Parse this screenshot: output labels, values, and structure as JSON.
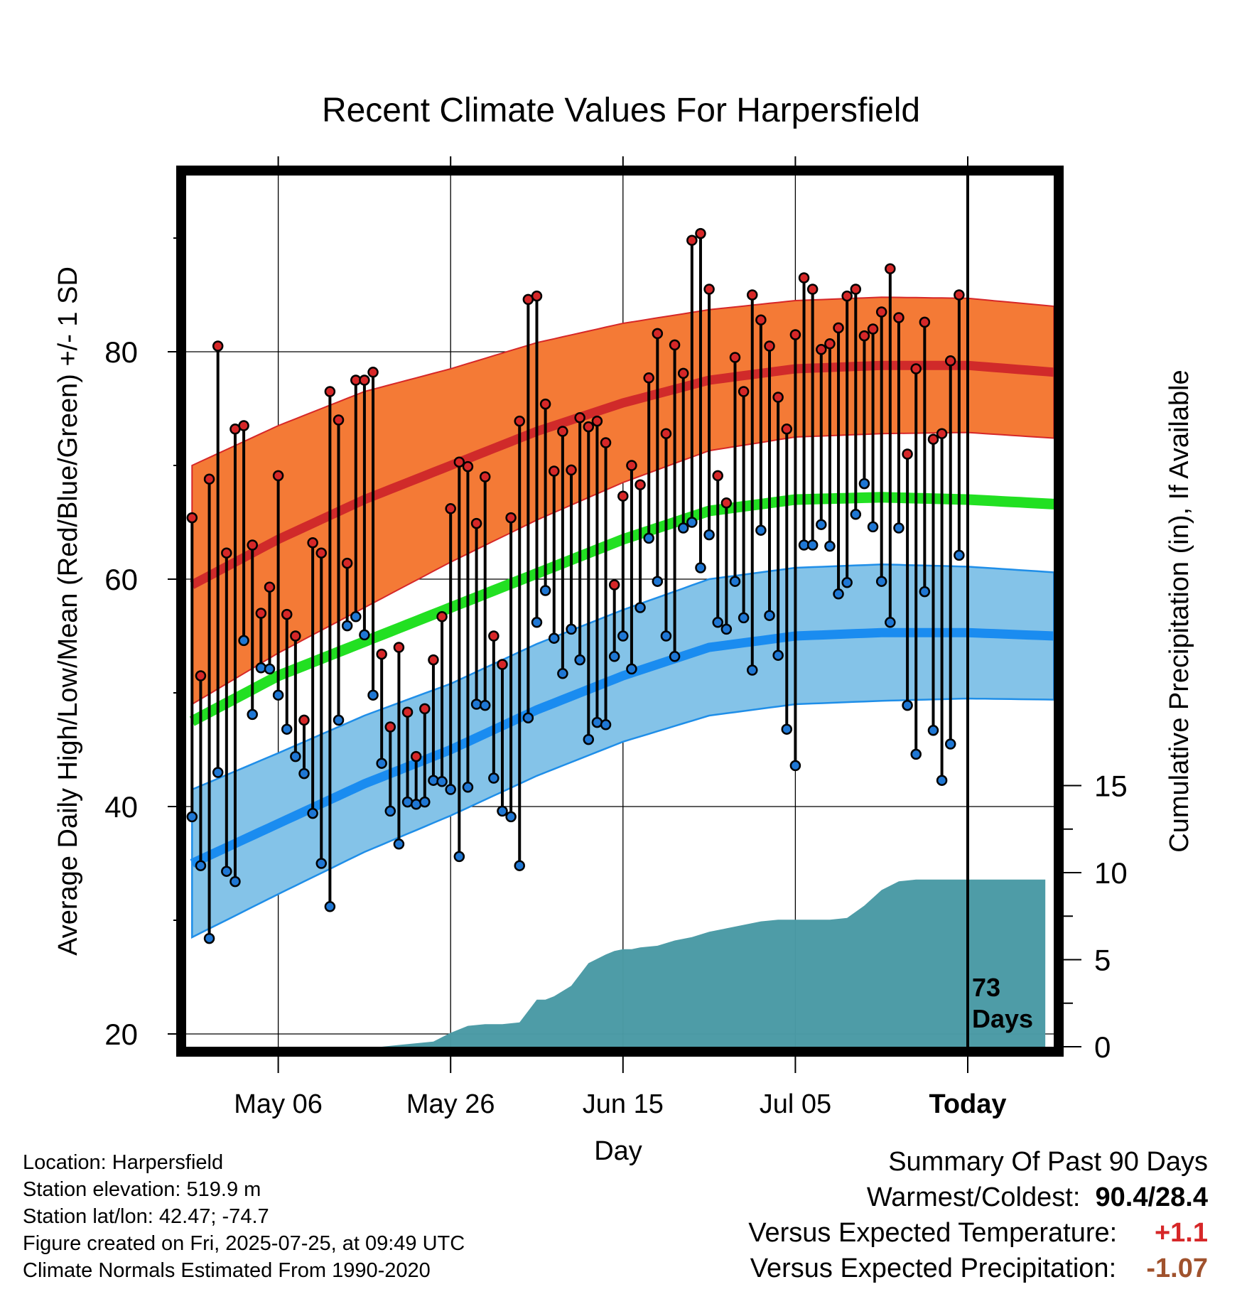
{
  "chart_data": {
    "type": "line",
    "title": "Recent Climate Values For Harpersfield",
    "xlabel": "Day",
    "ylabel": "Average Daily High/Low/Mean (Red/Blue/Green) +/- 1 SD",
    "y2label": "Cumulative Precipitation (in), If Available",
    "x_tick_labels": [
      "May 06",
      "May 26",
      "Jun 15",
      "Jul 05",
      "Today"
    ],
    "x_range_days": [
      -100,
      0
    ],
    "ylim": [
      18,
      98
    ],
    "y_ticks": [
      20,
      40,
      60,
      80
    ],
    "y2lim": [
      0,
      15
    ],
    "y2_ticks": [
      0,
      5,
      10,
      15
    ],
    "grid": true,
    "days_label": "73\nDays",
    "normals": {
      "x_days": [
        -90,
        -80,
        -70,
        -60,
        -50,
        -40,
        -30,
        -20,
        -10,
        0,
        10
      ],
      "high_mean": [
        59.5,
        63.5,
        67.0,
        70.0,
        73.0,
        75.5,
        77.5,
        78.5,
        78.8,
        78.8,
        78.2
      ],
      "high_sd": [
        10.5,
        10.0,
        9.5,
        8.5,
        7.8,
        7.0,
        6.2,
        6.0,
        6.0,
        5.9,
        5.8
      ],
      "low_mean": [
        35.0,
        38.5,
        42.0,
        45.0,
        48.5,
        51.5,
        54.0,
        55.0,
        55.3,
        55.3,
        55.0
      ],
      "low_sd": [
        6.5,
        6.2,
        6.0,
        5.8,
        5.8,
        5.8,
        6.0,
        6.0,
        6.0,
        5.8,
        5.6
      ],
      "mean": [
        47.5,
        51.5,
        54.5,
        57.5,
        60.5,
        63.5,
        66.0,
        67.0,
        67.2,
        67.0,
        66.6
      ]
    },
    "series": [
      {
        "name": "High",
        "color": "#d62728",
        "values": [
          65.4,
          51.5,
          68.8,
          80.5,
          62.3,
          73.2,
          73.5,
          63.0,
          57.0,
          59.3,
          69.1,
          56.9,
          55.0,
          47.6,
          63.2,
          62.3,
          76.5,
          74.0,
          61.4,
          77.5,
          77.5,
          78.2,
          53.4,
          47.0,
          54.0,
          48.3,
          44.4,
          48.6,
          52.9,
          56.7,
          66.2,
          70.3,
          69.9,
          64.9,
          69.0,
          55.0,
          52.5,
          65.4,
          73.9,
          84.6,
          84.9,
          75.4,
          69.5,
          73.0,
          69.6,
          74.2,
          73.4,
          73.9,
          72.0,
          59.5,
          67.3,
          70.0,
          68.3,
          77.7,
          81.6,
          72.8,
          80.6,
          78.1,
          89.8,
          90.4,
          85.5,
          69.1,
          66.7,
          79.5,
          76.5,
          85.0,
          82.8,
          80.5,
          76.0,
          73.2,
          81.5,
          86.5,
          85.5,
          80.2,
          80.7,
          82.1,
          84.9,
          85.5,
          81.4,
          82.0,
          83.5,
          87.3,
          83.0,
          71.0,
          78.5,
          82.6,
          72.3,
          72.8,
          79.2,
          85.0
        ]
      },
      {
        "name": "Low",
        "color": "#1f77d4",
        "values": [
          39.1,
          34.8,
          28.4,
          43.0,
          34.3,
          33.4,
          54.6,
          48.1,
          52.2,
          52.1,
          49.8,
          46.8,
          44.4,
          42.9,
          39.4,
          35.0,
          31.2,
          47.6,
          55.9,
          56.7,
          55.1,
          49.8,
          43.8,
          39.6,
          36.7,
          40.4,
          40.2,
          40.4,
          42.3,
          42.2,
          41.5,
          35.6,
          41.7,
          49.0,
          48.9,
          42.5,
          39.6,
          39.1,
          34.8,
          47.8,
          56.2,
          59.0,
          54.8,
          51.7,
          55.6,
          52.9,
          45.9,
          47.4,
          47.2,
          53.2,
          55.0,
          52.1,
          57.5,
          63.6,
          59.8,
          55.0,
          53.2,
          64.5,
          65.0,
          61.0,
          63.9,
          56.2,
          55.6,
          59.8,
          56.6,
          52.0,
          64.3,
          56.8,
          53.3,
          46.8,
          43.6,
          63.0,
          63.0,
          64.8,
          62.9,
          58.7,
          59.7,
          65.7,
          68.4,
          64.6,
          59.8,
          56.2,
          64.5,
          48.9,
          44.6,
          58.9,
          46.7,
          42.3,
          45.5,
          62.1
        ]
      },
      {
        "name": "Precipitation",
        "color": "#4a9aa5",
        "x_days": [
          -90,
          -68,
          -66,
          -64,
          -62,
          -60,
          -58,
          -56,
          -54,
          -52,
          -50,
          -49,
          -48,
          -46,
          -44,
          -42,
          -41,
          -40,
          -39,
          -38,
          -36,
          -34,
          -32,
          -30,
          -28,
          -26,
          -24,
          -22,
          -20,
          -18,
          -16,
          -14,
          -12,
          -10,
          -8,
          -6,
          -4,
          -2,
          0,
          9
        ],
        "values": [
          0.0,
          0.0,
          0.1,
          0.2,
          0.3,
          0.8,
          1.2,
          1.3,
          1.3,
          1.4,
          2.7,
          2.7,
          2.9,
          3.5,
          4.8,
          5.3,
          5.5,
          5.6,
          5.6,
          5.7,
          5.8,
          6.1,
          6.3,
          6.6,
          6.8,
          7.0,
          7.2,
          7.3,
          7.3,
          7.3,
          7.3,
          7.4,
          8.1,
          9.0,
          9.5,
          9.6,
          9.6,
          9.6,
          9.6,
          9.6
        ]
      }
    ]
  },
  "footer": {
    "location": "Location: Harpersfield",
    "elevation": "Station elevation: 519.9 m",
    "latlon": "Station lat/lon: 42.47; -74.7",
    "created": "Figure created on Fri, 2025-07-25, at 09:49 UTC",
    "normals": "Climate Normals Estimated From 1990-2020"
  },
  "summary": {
    "heading": "Summary Of Past 90 Days",
    "warmest_label": "Warmest/Coldest:",
    "warmest_value": "90.4/28.4",
    "temp_label": "Versus Expected Temperature:",
    "temp_value": "+1.1",
    "temp_color": "#d62728",
    "precip_label": "Versus Expected Precipitation:",
    "precip_value": "-1.07",
    "precip_color": "#a0522d"
  }
}
